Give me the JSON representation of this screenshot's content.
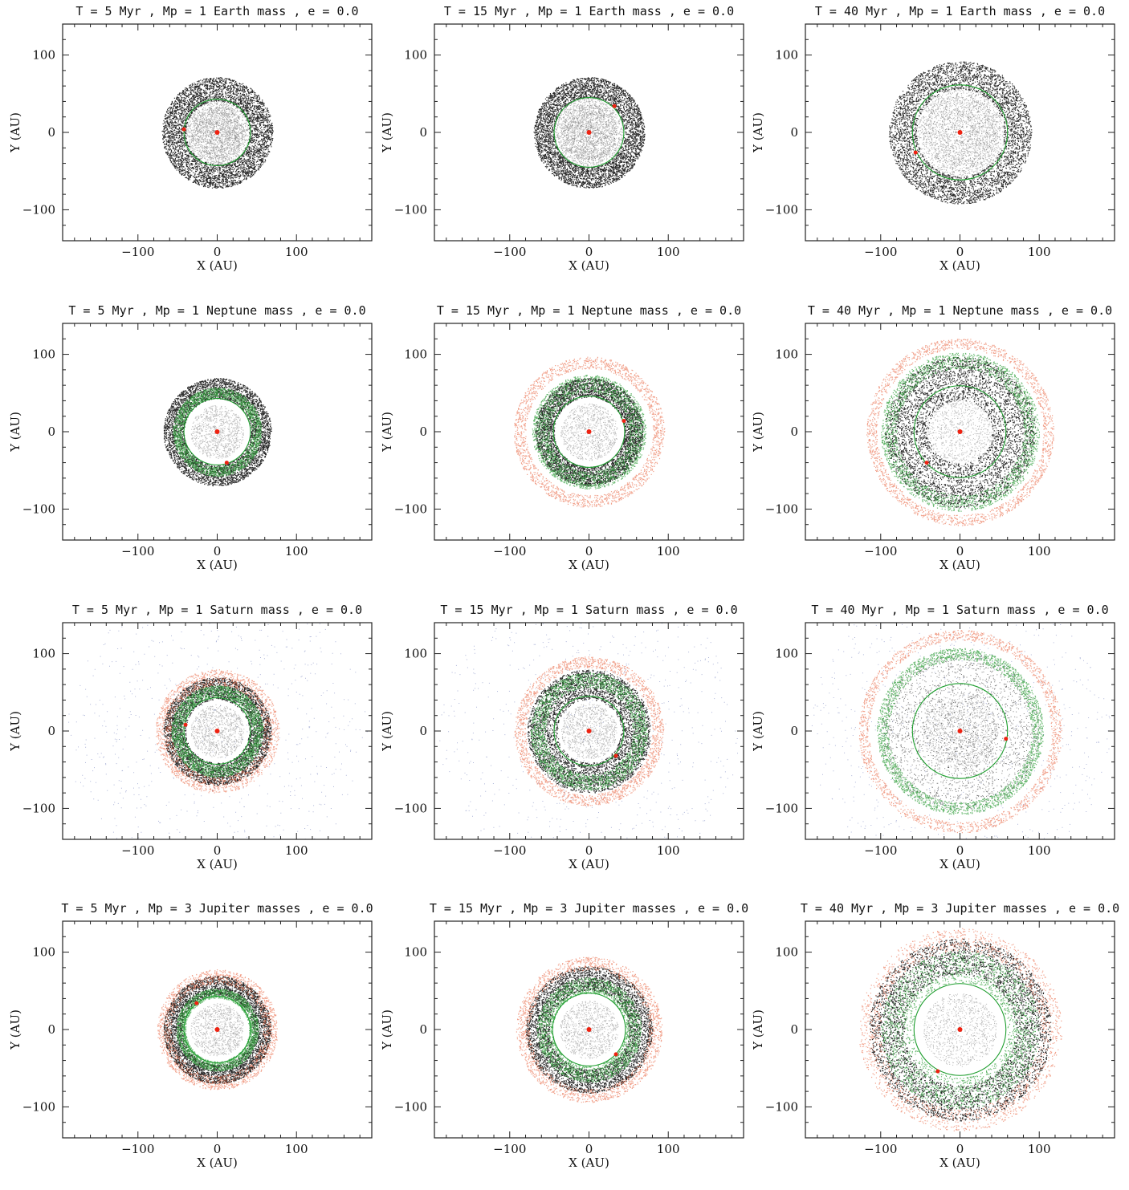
{
  "figure": {
    "x_label": "X (AU)",
    "y_label": "Y (AU)",
    "xlim": [
      -195,
      195
    ],
    "ylim": [
      -140,
      140
    ],
    "x_ticks": [
      -100,
      0,
      100
    ],
    "y_ticks": [
      -100,
      0,
      100
    ],
    "x_tick_labels": [
      "−100",
      "0",
      "100"
    ],
    "y_tick_labels": [
      "100",
      "0",
      "−100"
    ],
    "colors": {
      "dust": "#111111",
      "green_particles": "#2f9e3a",
      "red_particles": "#e8603c",
      "blue_sparse": "#4a58a8",
      "star_and_planet": "#ee2211",
      "orbit": "#1e9e2e"
    }
  },
  "chart_data": [
    {
      "type": "scatter",
      "title": "T = 5 Myr , Mp = 1 Earth mass , e = 0.0",
      "time_myr": 5,
      "planet_mass": "1 Earth mass",
      "e": 0.0,
      "planet_orbit_radius_au": 42,
      "planet_position": [
        -42,
        4
      ],
      "components": [
        {
          "color": "dust",
          "ring_inner_au": 40,
          "ring_outer_au": 70
        },
        {
          "color": "dust_sparse",
          "disk_radius_au": 45
        }
      ]
    },
    {
      "type": "scatter",
      "title": "T = 15 Myr , Mp = 1 Earth mass , e = 0.0",
      "time_myr": 15,
      "planet_mass": "1 Earth mass",
      "e": 0.0,
      "planet_orbit_radius_au": 44,
      "planet_position": [
        32,
        34
      ],
      "components": [
        {
          "color": "dust",
          "ring_inner_au": 44,
          "ring_outer_au": 70
        },
        {
          "color": "dust_sparse",
          "disk_radius_au": 46
        }
      ]
    },
    {
      "type": "scatter",
      "title": "T = 40 Myr , Mp = 1 Earth mass , e = 0.0",
      "time_myr": 40,
      "planet_mass": "1 Earth mass",
      "e": 0.0,
      "planet_orbit_radius_au": 60,
      "planet_position": [
        -56,
        -26
      ],
      "components": [
        {
          "color": "dust",
          "ring_inner_au": 55,
          "ring_outer_au": 90
        },
        {
          "color": "dust_sparse",
          "disk_radius_au": 58
        }
      ]
    },
    {
      "type": "scatter",
      "title": "T = 5 Myr , Mp = 1 Neptune mass , e = 0.0",
      "time_myr": 5,
      "planet_mass": "1 Neptune mass",
      "e": 0.0,
      "planet_orbit_radius_au": 42,
      "planet_position": [
        12,
        -40
      ],
      "components": [
        {
          "color": "dust",
          "ring_inner_au": 42,
          "ring_outer_au": 68
        },
        {
          "color": "green_particles",
          "ring_inner_au": 44,
          "ring_outer_au": 56
        }
      ]
    },
    {
      "type": "scatter",
      "title": "T = 15 Myr , Mp = 1 Neptune mass , e = 0.0",
      "time_myr": 15,
      "planet_mass": "1 Neptune mass",
      "e": 0.0,
      "planet_orbit_radius_au": 45,
      "planet_position": [
        44,
        14
      ],
      "components": [
        {
          "color": "dust",
          "ring_inner_au": 44,
          "ring_outer_au": 68
        },
        {
          "color": "green_particles",
          "ring_inner_au": 50,
          "ring_outer_au": 72
        },
        {
          "color": "red_particles",
          "ring_inner_au": 80,
          "ring_outer_au": 95
        }
      ]
    },
    {
      "type": "scatter",
      "title": "T = 40 Myr , Mp = 1 Neptune mass , e = 0.0",
      "time_myr": 40,
      "planet_mass": "1 Neptune mass",
      "e": 0.0,
      "planet_orbit_radius_au": 58,
      "planet_position": [
        -42,
        -40
      ],
      "components": [
        {
          "color": "dust",
          "ring_inner_au": 40,
          "ring_outer_au": 95
        },
        {
          "color": "green_particles",
          "ring_inner_au": 80,
          "ring_outer_au": 100
        },
        {
          "color": "red_particles",
          "ring_inner_au": 105,
          "ring_outer_au": 118
        }
      ]
    },
    {
      "type": "scatter",
      "title": "T = 5 Myr , Mp = 1 Saturn mass , e = 0.0",
      "time_myr": 5,
      "planet_mass": "1 Saturn mass",
      "e": 0.0,
      "planet_orbit_radius_au": 42,
      "planet_position": [
        -40,
        8
      ],
      "components": [
        {
          "color": "dust",
          "ring_inner_au": 40,
          "ring_outer_au": 68
        },
        {
          "color": "green_particles",
          "ring_inner_au": 44,
          "ring_outer_au": 58
        },
        {
          "color": "red_particles",
          "ring_inner_au": 58,
          "ring_outer_au": 78
        },
        {
          "color": "blue_sparse",
          "disk_radius_au": 190
        }
      ]
    },
    {
      "type": "scatter",
      "title": "T = 15 Myr , Mp = 1 Saturn mass , e = 0.0",
      "time_myr": 15,
      "planet_mass": "1 Saturn mass",
      "e": 0.0,
      "planet_orbit_radius_au": 44,
      "planet_position": [
        34,
        -32
      ],
      "components": [
        {
          "color": "dust",
          "ring_inner_au": 40,
          "ring_outer_au": 78
        },
        {
          "color": "green_particles",
          "ring_inner_au": 55,
          "ring_outer_au": 74
        },
        {
          "color": "red_particles",
          "ring_inner_au": 80,
          "ring_outer_au": 94
        },
        {
          "color": "blue_sparse",
          "disk_radius_au": 190
        }
      ]
    },
    {
      "type": "scatter",
      "title": "T = 40 Myr , Mp = 1 Saturn mass , e = 0.0",
      "time_myr": 40,
      "planet_mass": "1 Saturn mass",
      "e": 0.0,
      "planet_orbit_radius_au": 60,
      "planet_position": [
        58,
        -10
      ],
      "components": [
        {
          "color": "dust",
          "disk_radius_au": 100
        },
        {
          "color": "green_particles",
          "ring_inner_au": 90,
          "ring_outer_au": 105
        },
        {
          "color": "red_particles",
          "ring_inner_au": 115,
          "ring_outer_au": 128
        },
        {
          "color": "blue_sparse",
          "disk_radius_au": 190
        }
      ]
    },
    {
      "type": "scatter",
      "title": "T = 5 Myr , Mp = 3 Jupiter masses , e = 0.0",
      "time_myr": 5,
      "planet_mass": "3 Jupiter masses",
      "e": 0.0,
      "planet_orbit_radius_au": 42,
      "planet_position": [
        -26,
        34
      ],
      "components": [
        {
          "color": "dust",
          "ring_inner_au": 44,
          "ring_outer_au": 68
        },
        {
          "color": "green_particles",
          "ring_inner_au": 40,
          "ring_outer_au": 52
        },
        {
          "color": "red_particles",
          "ring_inner_au": 58,
          "ring_outer_au": 76
        }
      ]
    },
    {
      "type": "scatter",
      "title": "T = 15 Myr , Mp = 3 Jupiter masses , e = 0.0",
      "time_myr": 15,
      "planet_mass": "3 Jupiter masses",
      "e": 0.0,
      "planet_orbit_radius_au": 46,
      "planet_position": [
        34,
        -32
      ],
      "components": [
        {
          "color": "dust",
          "ring_inner_au": 50,
          "ring_outer_au": 80
        },
        {
          "color": "green_particles",
          "ring_inner_au": 46,
          "ring_outer_au": 66
        },
        {
          "color": "red_particles",
          "ring_inner_au": 75,
          "ring_outer_au": 92
        }
      ]
    },
    {
      "type": "scatter",
      "title": "T = 40 Myr , Mp = 3 Jupiter masses , e = 0.0",
      "time_myr": 40,
      "planet_mass": "3 Jupiter masses",
      "e": 0.0,
      "planet_orbit_radius_au": 58,
      "planet_position": [
        -28,
        -54
      ],
      "components": [
        {
          "color": "dust",
          "ring_inner_au": 70,
          "ring_outer_au": 115
        },
        {
          "color": "green_particles",
          "ring_inner_au": 60,
          "ring_outer_au": 100
        },
        {
          "color": "red_particles",
          "ring_inner_au": 100,
          "ring_outer_au": 128
        }
      ]
    }
  ]
}
